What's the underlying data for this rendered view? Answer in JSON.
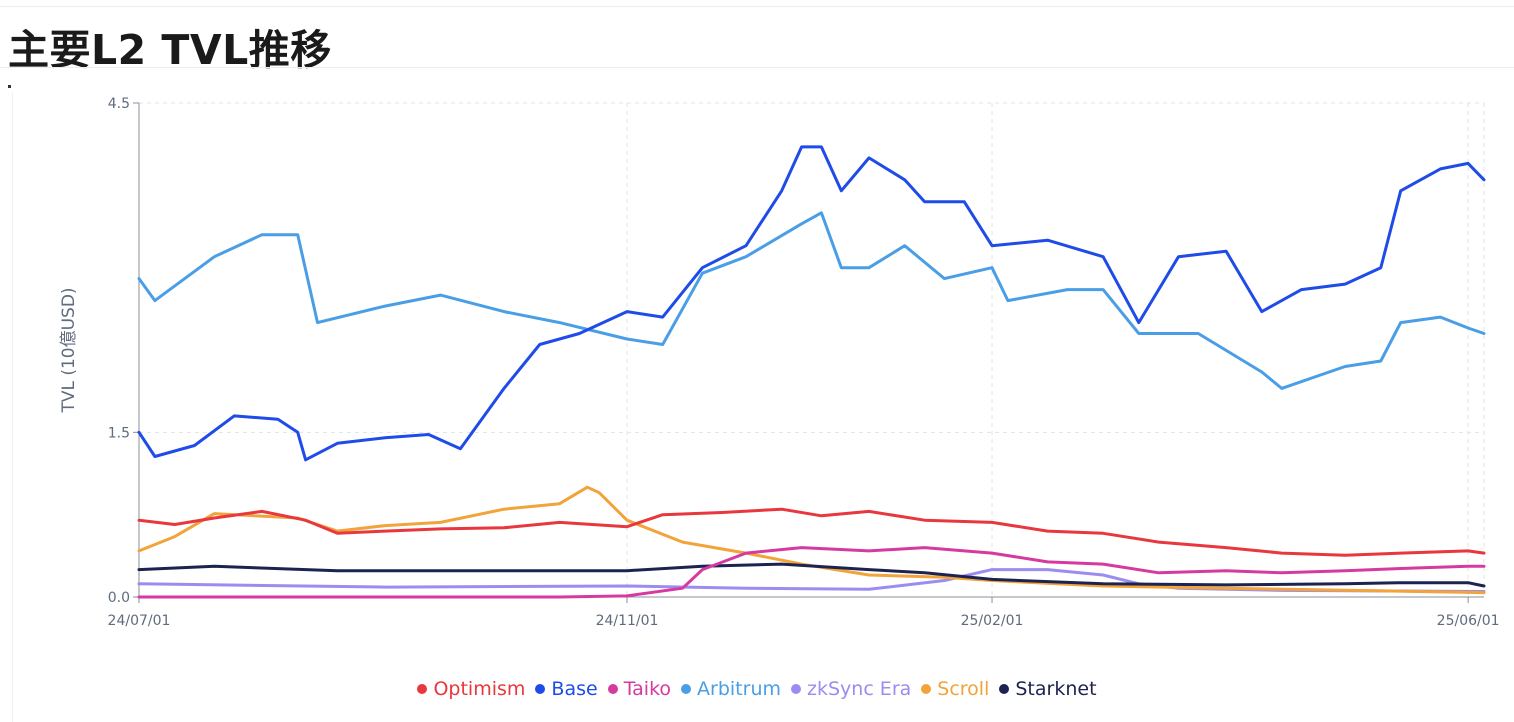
{
  "page": {
    "title": "主要L2 TVL推移"
  },
  "chart_data": {
    "type": "line",
    "ylabel": "TVL (10億USD)",
    "xlabel": "",
    "ylim": [
      0,
      4.5
    ],
    "yticks": [
      0.0,
      1.5,
      4.5
    ],
    "xticks": [
      "24/07/01",
      "24/11/01",
      "25/02/01",
      "25/06/01"
    ],
    "grid": "dashed",
    "legend_position": "bottom-center",
    "series": [
      {
        "name": "Optimism",
        "color": "#e8373d",
        "points": [
          [
            "2024-07-01",
            0.7
          ],
          [
            "2024-07-10",
            0.66
          ],
          [
            "2024-07-20",
            0.72
          ],
          [
            "2024-08-01",
            0.78
          ],
          [
            "2024-08-12",
            0.7
          ],
          [
            "2024-08-20",
            0.58
          ],
          [
            "2024-09-01",
            0.6
          ],
          [
            "2024-09-15",
            0.62
          ],
          [
            "2024-10-01",
            0.63
          ],
          [
            "2024-10-15",
            0.68
          ],
          [
            "2024-11-01",
            0.64
          ],
          [
            "2024-11-10",
            0.75
          ],
          [
            "2024-11-25",
            0.77
          ],
          [
            "2024-12-10",
            0.8
          ],
          [
            "2024-12-20",
            0.74
          ],
          [
            "2025-01-01",
            0.78
          ],
          [
            "2025-01-15",
            0.7
          ],
          [
            "2025-02-01",
            0.68
          ],
          [
            "2025-02-15",
            0.6
          ],
          [
            "2025-03-01",
            0.58
          ],
          [
            "2025-03-15",
            0.5
          ],
          [
            "2025-04-01",
            0.45
          ],
          [
            "2025-04-15",
            0.4
          ],
          [
            "2025-05-01",
            0.38
          ],
          [
            "2025-05-15",
            0.4
          ],
          [
            "2025-06-01",
            0.42
          ],
          [
            "2025-06-05",
            0.4
          ]
        ]
      },
      {
        "name": "Base",
        "color": "#1f4be8",
        "points": [
          [
            "2024-07-01",
            1.5
          ],
          [
            "2024-07-05",
            1.28
          ],
          [
            "2024-07-15",
            1.38
          ],
          [
            "2024-07-25",
            1.65
          ],
          [
            "2024-08-05",
            1.62
          ],
          [
            "2024-08-10",
            1.5
          ],
          [
            "2024-08-12",
            1.25
          ],
          [
            "2024-08-20",
            1.4
          ],
          [
            "2024-09-01",
            1.45
          ],
          [
            "2024-09-12",
            1.48
          ],
          [
            "2024-09-20",
            1.35
          ],
          [
            "2024-10-01",
            1.9
          ],
          [
            "2024-10-10",
            2.3
          ],
          [
            "2024-10-20",
            2.4
          ],
          [
            "2024-11-01",
            2.6
          ],
          [
            "2024-11-10",
            2.55
          ],
          [
            "2024-11-20",
            3.0
          ],
          [
            "2024-12-01",
            3.2
          ],
          [
            "2024-12-10",
            3.7
          ],
          [
            "2024-12-15",
            4.1
          ],
          [
            "2024-12-20",
            4.1
          ],
          [
            "2024-12-25",
            3.7
          ],
          [
            "2025-01-01",
            4.0
          ],
          [
            "2025-01-10",
            3.8
          ],
          [
            "2025-01-15",
            3.6
          ],
          [
            "2025-01-25",
            3.6
          ],
          [
            "2025-02-01",
            3.2
          ],
          [
            "2025-02-15",
            3.25
          ],
          [
            "2025-03-01",
            3.1
          ],
          [
            "2025-03-10",
            2.5
          ],
          [
            "2025-03-20",
            3.1
          ],
          [
            "2025-04-01",
            3.15
          ],
          [
            "2025-04-10",
            2.6
          ],
          [
            "2025-04-20",
            2.8
          ],
          [
            "2025-05-01",
            2.85
          ],
          [
            "2025-05-10",
            3.0
          ],
          [
            "2025-05-15",
            3.7
          ],
          [
            "2025-05-25",
            3.9
          ],
          [
            "2025-06-01",
            3.95
          ],
          [
            "2025-06-05",
            3.8
          ]
        ]
      },
      {
        "name": "Taiko",
        "color": "#d63aa0",
        "points": [
          [
            "2024-07-01",
            0.0
          ],
          [
            "2024-09-01",
            0.0
          ],
          [
            "2024-10-15",
            0.0
          ],
          [
            "2024-11-01",
            0.01
          ],
          [
            "2024-11-15",
            0.08
          ],
          [
            "2024-11-20",
            0.25
          ],
          [
            "2024-12-01",
            0.4
          ],
          [
            "2024-12-15",
            0.45
          ],
          [
            "2025-01-01",
            0.42
          ],
          [
            "2025-01-15",
            0.45
          ],
          [
            "2025-02-01",
            0.4
          ],
          [
            "2025-02-15",
            0.32
          ],
          [
            "2025-03-01",
            0.3
          ],
          [
            "2025-03-15",
            0.22
          ],
          [
            "2025-04-01",
            0.24
          ],
          [
            "2025-04-15",
            0.22
          ],
          [
            "2025-05-01",
            0.24
          ],
          [
            "2025-05-15",
            0.26
          ],
          [
            "2025-06-01",
            0.28
          ],
          [
            "2025-06-05",
            0.28
          ]
        ]
      },
      {
        "name": "Arbitrum",
        "color": "#4a9ee6",
        "points": [
          [
            "2024-07-01",
            2.9
          ],
          [
            "2024-07-05",
            2.7
          ],
          [
            "2024-07-20",
            3.1
          ],
          [
            "2024-08-01",
            3.3
          ],
          [
            "2024-08-10",
            3.3
          ],
          [
            "2024-08-15",
            2.5
          ],
          [
            "2024-09-01",
            2.65
          ],
          [
            "2024-09-15",
            2.75
          ],
          [
            "2024-10-01",
            2.6
          ],
          [
            "2024-10-15",
            2.5
          ],
          [
            "2024-11-01",
            2.35
          ],
          [
            "2024-11-10",
            2.3
          ],
          [
            "2024-11-20",
            2.95
          ],
          [
            "2024-12-01",
            3.1
          ],
          [
            "2024-12-15",
            3.4
          ],
          [
            "2024-12-20",
            3.5
          ],
          [
            "2024-12-25",
            3.0
          ],
          [
            "2025-01-01",
            3.0
          ],
          [
            "2025-01-10",
            3.2
          ],
          [
            "2025-01-20",
            2.9
          ],
          [
            "2025-02-01",
            3.0
          ],
          [
            "2025-02-05",
            2.7
          ],
          [
            "2025-02-20",
            2.8
          ],
          [
            "2025-03-01",
            2.8
          ],
          [
            "2025-03-10",
            2.4
          ],
          [
            "2025-03-25",
            2.4
          ],
          [
            "2025-04-10",
            2.05
          ],
          [
            "2025-04-15",
            1.9
          ],
          [
            "2025-05-01",
            2.1
          ],
          [
            "2025-05-10",
            2.15
          ],
          [
            "2025-05-15",
            2.5
          ],
          [
            "2025-05-25",
            2.55
          ],
          [
            "2025-06-01",
            2.45
          ],
          [
            "2025-06-05",
            2.4
          ]
        ]
      },
      {
        "name": "zkSync Era",
        "color": "#9b8cf0",
        "points": [
          [
            "2024-07-01",
            0.12
          ],
          [
            "2024-09-01",
            0.09
          ],
          [
            "2024-11-01",
            0.1
          ],
          [
            "2024-12-01",
            0.08
          ],
          [
            "2025-01-01",
            0.07
          ],
          [
            "2025-01-20",
            0.15
          ],
          [
            "2025-02-01",
            0.25
          ],
          [
            "2025-02-15",
            0.25
          ],
          [
            "2025-03-01",
            0.2
          ],
          [
            "2025-03-10",
            0.12
          ],
          [
            "2025-03-20",
            0.08
          ],
          [
            "2025-04-15",
            0.06
          ],
          [
            "2025-06-05",
            0.05
          ]
        ]
      },
      {
        "name": "Scroll",
        "color": "#f2a33a",
        "points": [
          [
            "2024-07-01",
            0.42
          ],
          [
            "2024-07-10",
            0.55
          ],
          [
            "2024-07-20",
            0.76
          ],
          [
            "2024-08-10",
            0.72
          ],
          [
            "2024-08-20",
            0.6
          ],
          [
            "2024-09-01",
            0.65
          ],
          [
            "2024-09-15",
            0.68
          ],
          [
            "2024-10-01",
            0.8
          ],
          [
            "2024-10-15",
            0.85
          ],
          [
            "2024-10-22",
            1.0
          ],
          [
            "2024-10-25",
            0.95
          ],
          [
            "2024-11-01",
            0.7
          ],
          [
            "2024-11-15",
            0.5
          ],
          [
            "2024-12-01",
            0.4
          ],
          [
            "2024-12-15",
            0.3
          ],
          [
            "2025-01-01",
            0.2
          ],
          [
            "2025-01-20",
            0.18
          ],
          [
            "2025-02-01",
            0.15
          ],
          [
            "2025-03-01",
            0.1
          ],
          [
            "2025-04-01",
            0.08
          ],
          [
            "2025-06-05",
            0.04
          ]
        ]
      },
      {
        "name": "Starknet",
        "color": "#1c2350",
        "points": [
          [
            "2024-07-01",
            0.25
          ],
          [
            "2024-07-20",
            0.28
          ],
          [
            "2024-08-20",
            0.24
          ],
          [
            "2024-10-01",
            0.24
          ],
          [
            "2024-11-01",
            0.24
          ],
          [
            "2024-11-20",
            0.28
          ],
          [
            "2024-12-10",
            0.3
          ],
          [
            "2025-01-01",
            0.25
          ],
          [
            "2025-01-15",
            0.22
          ],
          [
            "2025-02-01",
            0.16
          ],
          [
            "2025-03-01",
            0.12
          ],
          [
            "2025-04-01",
            0.11
          ],
          [
            "2025-05-01",
            0.12
          ],
          [
            "2025-05-15",
            0.13
          ],
          [
            "2025-06-01",
            0.13
          ],
          [
            "2025-06-05",
            0.1
          ]
        ]
      }
    ]
  }
}
